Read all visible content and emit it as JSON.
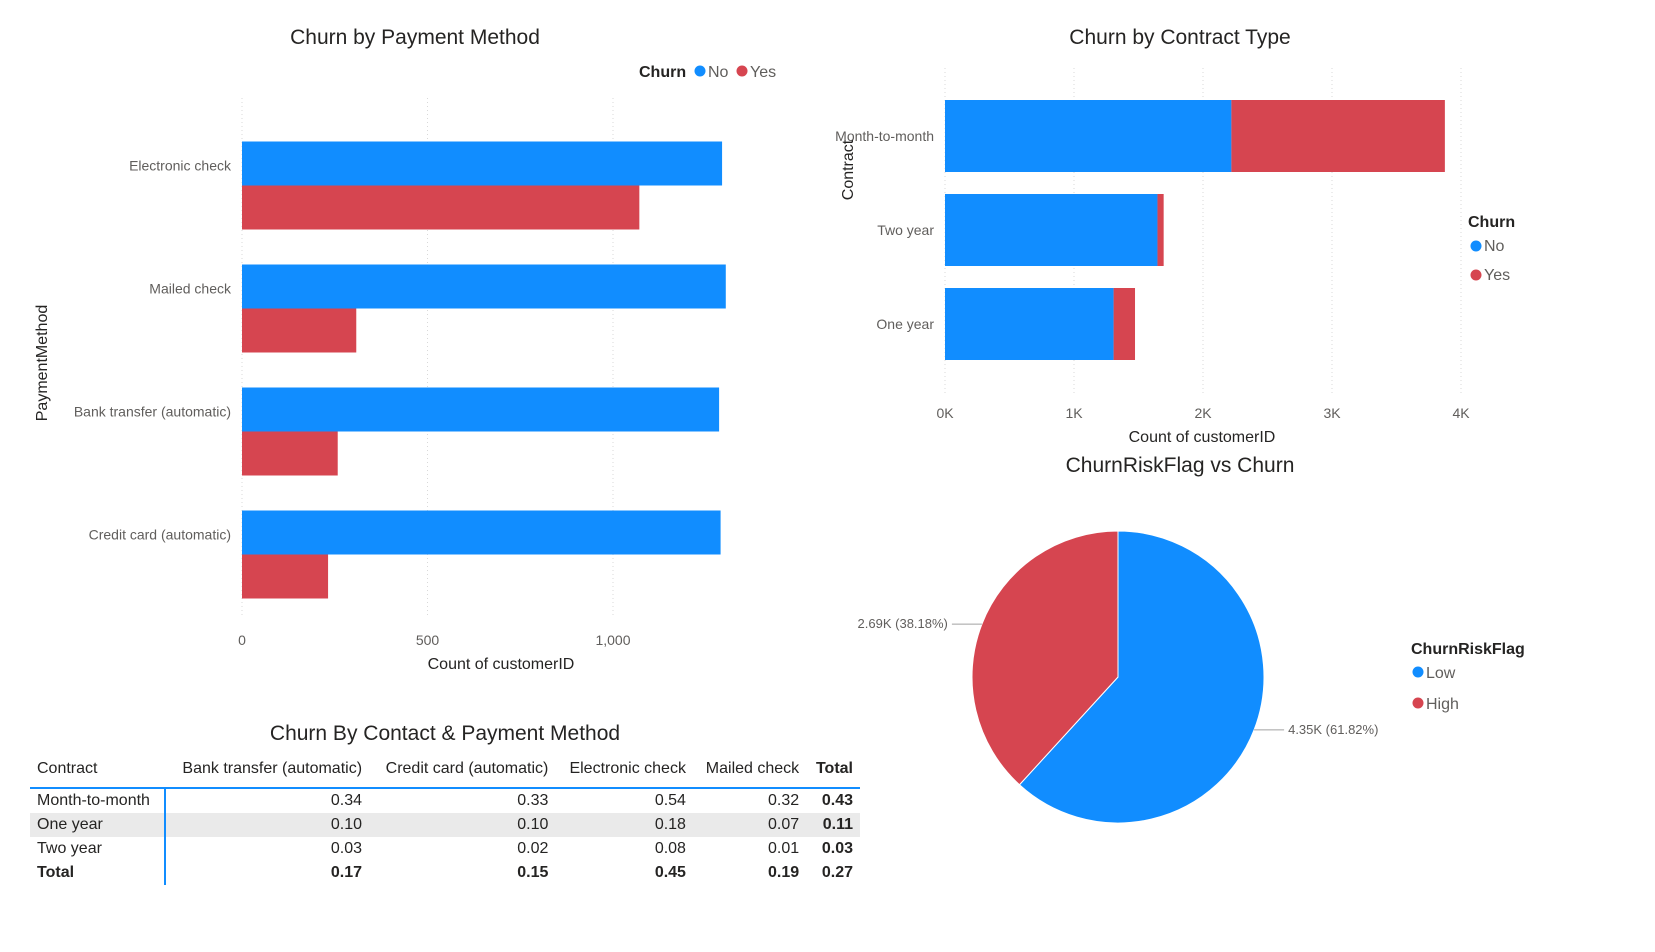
{
  "colors": {
    "no": "#118dff",
    "yes": "#d64550",
    "grid": "#d9d9d9"
  },
  "payment_chart": {
    "title": "Churn by Payment Method",
    "legend_title": "Churn",
    "xlabel": "Count of customerID",
    "ylabel": "PaymentMethod",
    "ticks": [
      "0",
      "500",
      "1,000"
    ]
  },
  "contract_chart": {
    "title": "Churn by Contract Type",
    "legend_title": "Churn",
    "xlabel": "Count of customerID",
    "ylabel": "Contract",
    "ticks": [
      "0K",
      "1K",
      "2K",
      "3K",
      "4K"
    ]
  },
  "pie_chart": {
    "title": "ChurnRiskFlag vs Churn",
    "legend_title": "ChurnRiskFlag"
  },
  "matrix": {
    "title": "Churn By Contact & Payment Method",
    "headers": [
      "Contract",
      "Bank transfer (automatic)",
      "Credit card (automatic)",
      "Electronic check",
      "Mailed check",
      "Total"
    ],
    "rows": [
      [
        "Month-to-month",
        "0.34",
        "0.33",
        "0.54",
        "0.32",
        "0.43"
      ],
      [
        "One year",
        "0.10",
        "0.10",
        "0.18",
        "0.07",
        "0.11"
      ],
      [
        "Two year",
        "0.03",
        "0.02",
        "0.08",
        "0.01",
        "0.03"
      ],
      [
        "Total",
        "0.17",
        "0.15",
        "0.45",
        "0.19",
        "0.27"
      ]
    ]
  },
  "chart_data": [
    {
      "type": "bar",
      "orientation": "horizontal",
      "title": "Churn by Payment Method",
      "xlabel": "Count of customerID",
      "ylabel": "PaymentMethod",
      "categories": [
        "Electronic check",
        "Mailed check",
        "Bank transfer (automatic)",
        "Credit card (automatic)"
      ],
      "series": [
        {
          "name": "No",
          "values": [
            1294,
            1304,
            1286,
            1290
          ]
        },
        {
          "name": "Yes",
          "values": [
            1071,
            308,
            258,
            232
          ]
        }
      ],
      "xlim": [
        0,
        1400
      ],
      "grid": true,
      "legend": "top-right"
    },
    {
      "type": "bar",
      "orientation": "horizontal",
      "stacked": true,
      "title": "Churn by Contract Type",
      "xlabel": "Count of customerID",
      "ylabel": "Contract",
      "categories": [
        "Month-to-month",
        "Two year",
        "One year"
      ],
      "series": [
        {
          "name": "No",
          "values": [
            2220,
            1647,
            1307
          ]
        },
        {
          "name": "Yes",
          "values": [
            1655,
            48,
            166
          ]
        }
      ],
      "xlim": [
        0,
        4000
      ],
      "grid": true,
      "legend": "right"
    },
    {
      "type": "pie",
      "title": "ChurnRiskFlag vs Churn",
      "categories": [
        "Low",
        "High"
      ],
      "values": [
        4350,
        2690
      ],
      "labels": [
        "4.35K (61.82%)",
        "2.69K (38.18%)"
      ],
      "legend": "right"
    }
  ]
}
